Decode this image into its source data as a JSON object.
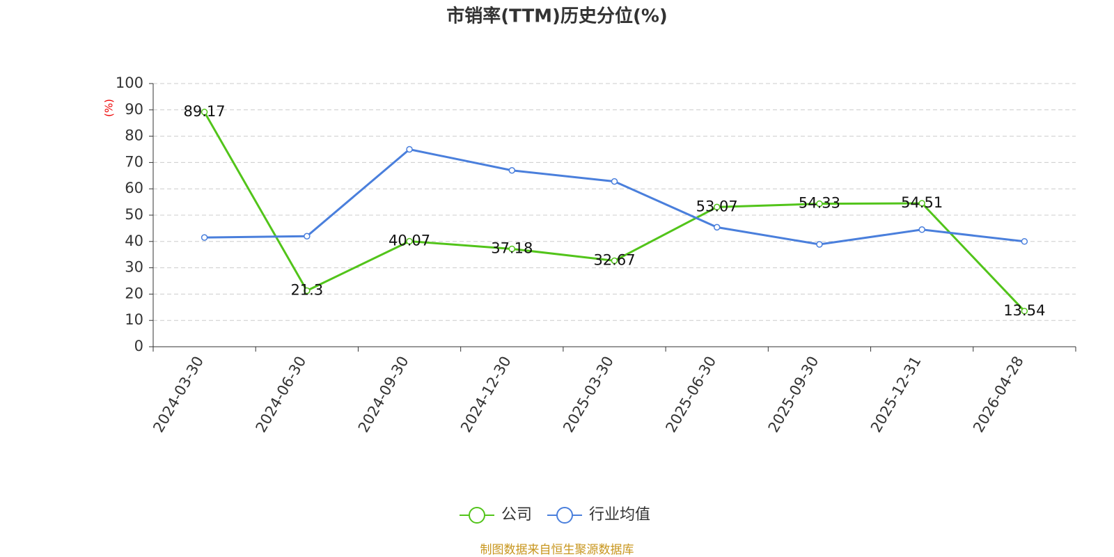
{
  "chart_data": {
    "type": "line",
    "title": "市销率(TTM)历史分位(%)",
    "y_label": "(%)",
    "categories": [
      "2024-03-30",
      "2024-06-30",
      "2024-09-30",
      "2024-12-30",
      "2025-03-30",
      "2025-06-30",
      "2025-09-30",
      "2025-12-31",
      "2026-04-28"
    ],
    "series": [
      {
        "name": "公司",
        "color": "#52c41a",
        "values": [
          89.17,
          21.3,
          40.07,
          37.18,
          32.67,
          53.07,
          54.33,
          54.51,
          13.54
        ],
        "show_labels": true
      },
      {
        "name": "行业均值",
        "color": "#4a7fdc",
        "values": [
          41.5,
          42,
          75,
          67,
          62.8,
          45.4,
          38.9,
          44.5,
          40
        ],
        "show_labels": false
      }
    ],
    "ylim": [
      0,
      100
    ],
    "yticks": [
      0,
      10,
      20,
      30,
      40,
      50,
      60,
      70,
      80,
      90,
      100
    ],
    "grid": true,
    "source": "制图数据来自恒生聚源数据库"
  }
}
